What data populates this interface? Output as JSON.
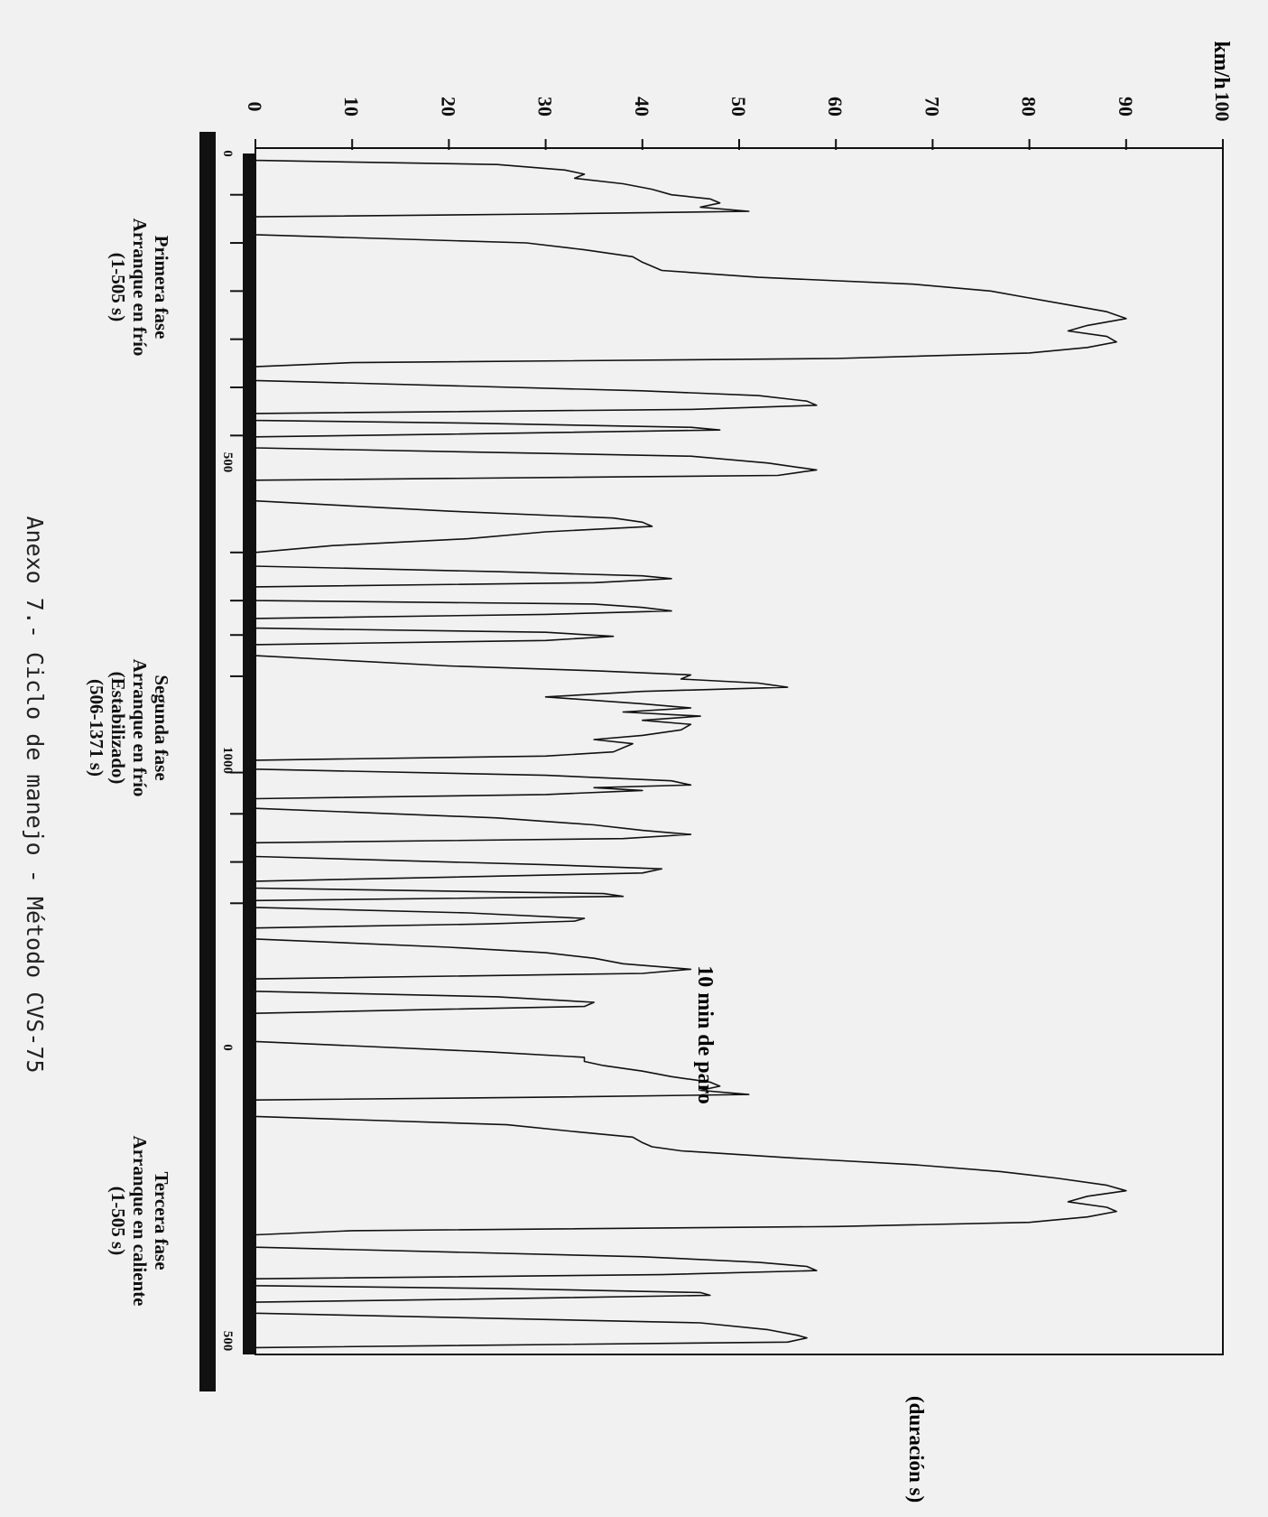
{
  "page": {
    "caption": "Anexo 7.- Ciclo de manejo - Método CVS-75",
    "colors": {
      "background": "#f1f1f1",
      "ink": "#111111"
    }
  },
  "chart_data": {
    "type": "line",
    "orientation": "rotated 90° clockwise",
    "ylabel": "km/h",
    "xlabel": "(duración s)",
    "ylim": [
      0,
      100
    ],
    "yticks": [
      0,
      10,
      20,
      30,
      40,
      50,
      60,
      70,
      80,
      90,
      100
    ],
    "xtick_labels": [
      "0",
      "500",
      "1000",
      "0",
      "500"
    ],
    "grid": false,
    "annotation": "10 min de paro",
    "phases": [
      {
        "lines": [
          "Primera fase",
          "Arranque en frío",
          "(1-505 s)"
        ]
      },
      {
        "lines": [
          "Segunda fase",
          "Arranque en frío",
          "(Estabilizado)",
          "(506-1371 s)"
        ]
      },
      {
        "lines": [
          "Tercera fase",
          "Arranque en caliente",
          "(1-505 s)"
        ]
      }
    ],
    "series": [
      {
        "points": [
          [
            0,
            0
          ],
          [
            10,
            0
          ],
          [
            16,
            25
          ],
          [
            24,
            32
          ],
          [
            30,
            34
          ],
          [
            36,
            33
          ],
          [
            44,
            38
          ],
          [
            52,
            41
          ],
          [
            60,
            43
          ],
          [
            66,
            47
          ],
          [
            72,
            48
          ],
          [
            78,
            46
          ],
          [
            84,
            51
          ],
          [
            88,
            30
          ],
          [
            92,
            0
          ],
          [
            118,
            0
          ],
          [
            130,
            28
          ],
          [
            140,
            34
          ],
          [
            150,
            39
          ],
          [
            158,
            40
          ],
          [
            164,
            41
          ],
          [
            170,
            42
          ],
          [
            180,
            52
          ],
          [
            190,
            68
          ],
          [
            200,
            76
          ],
          [
            210,
            80
          ],
          [
            220,
            84
          ],
          [
            230,
            88
          ],
          [
            240,
            90
          ],
          [
            250,
            86
          ],
          [
            258,
            84
          ],
          [
            266,
            88
          ],
          [
            274,
            89
          ],
          [
            282,
            86
          ],
          [
            290,
            80
          ],
          [
            298,
            60
          ],
          [
            304,
            10
          ],
          [
            310,
            0
          ],
          [
            330,
            0
          ],
          [
            345,
            40
          ],
          [
            352,
            52
          ],
          [
            360,
            57
          ],
          [
            366,
            58
          ],
          [
            372,
            45
          ],
          [
            378,
            0
          ],
          [
            388,
            0
          ],
          [
            392,
            22
          ],
          [
            398,
            45
          ],
          [
            402,
            48
          ],
          [
            408,
            20
          ],
          [
            412,
            0
          ],
          [
            428,
            0
          ],
          [
            440,
            45
          ],
          [
            450,
            53
          ],
          [
            456,
            56
          ],
          [
            460,
            58
          ],
          [
            464,
            56
          ],
          [
            468,
            54
          ],
          [
            475,
            0
          ],
          [
            505,
            0
          ],
          [
            520,
            20
          ],
          [
            530,
            37
          ],
          [
            536,
            40
          ],
          [
            542,
            41
          ],
          [
            550,
            30
          ],
          [
            560,
            22
          ],
          [
            570,
            8
          ],
          [
            580,
            0
          ],
          [
            600,
            0
          ],
          [
            608,
            25
          ],
          [
            614,
            40
          ],
          [
            618,
            43
          ],
          [
            624,
            35
          ],
          [
            630,
            0
          ],
          [
            650,
            0
          ],
          [
            655,
            35
          ],
          [
            660,
            40
          ],
          [
            665,
            43
          ],
          [
            670,
            30
          ],
          [
            676,
            0
          ],
          [
            690,
            0
          ],
          [
            696,
            30
          ],
          [
            702,
            37
          ],
          [
            708,
            30
          ],
          [
            714,
            0
          ],
          [
            730,
            0
          ],
          [
            745,
            20
          ],
          [
            752,
            35
          ],
          [
            758,
            45
          ],
          [
            764,
            44
          ],
          [
            770,
            52
          ],
          [
            776,
            55
          ],
          [
            782,
            40
          ],
          [
            790,
            30
          ],
          [
            800,
            40
          ],
          [
            806,
            45
          ],
          [
            812,
            38
          ],
          [
            818,
            46
          ],
          [
            824,
            40
          ],
          [
            830,
            45
          ],
          [
            838,
            44
          ],
          [
            846,
            40
          ],
          [
            852,
            35
          ],
          [
            858,
            39
          ],
          [
            864,
            38
          ],
          [
            870,
            37
          ],
          [
            876,
            30
          ],
          [
            882,
            0
          ],
          [
            895,
            0
          ],
          [
            904,
            30
          ],
          [
            912,
            43
          ],
          [
            918,
            45
          ],
          [
            922,
            35
          ],
          [
            926,
            40
          ],
          [
            932,
            30
          ],
          [
            938,
            0
          ],
          [
            952,
            0
          ],
          [
            966,
            25
          ],
          [
            976,
            35
          ],
          [
            984,
            40
          ],
          [
            990,
            45
          ],
          [
            996,
            38
          ],
          [
            1002,
            0
          ],
          [
            1022,
            0
          ],
          [
            1034,
            30
          ],
          [
            1040,
            42
          ],
          [
            1046,
            40
          ],
          [
            1052,
            20
          ],
          [
            1058,
            0
          ],
          [
            1068,
            0
          ],
          [
            1076,
            36
          ],
          [
            1080,
            38
          ],
          [
            1086,
            0
          ],
          [
            1096,
            0
          ],
          [
            1104,
            22
          ],
          [
            1112,
            34
          ],
          [
            1116,
            33
          ],
          [
            1120,
            24
          ],
          [
            1126,
            0
          ],
          [
            1142,
            0
          ],
          [
            1154,
            20
          ],
          [
            1162,
            30
          ],
          [
            1170,
            35
          ],
          [
            1178,
            38
          ],
          [
            1186,
            45
          ],
          [
            1192,
            40
          ],
          [
            1200,
            0
          ],
          [
            1218,
            0
          ],
          [
            1226,
            25
          ],
          [
            1234,
            35
          ],
          [
            1240,
            34
          ],
          [
            1244,
            20
          ],
          [
            1250,
            0
          ],
          [
            1291,
            0
          ],
          [
            1306,
            24
          ],
          [
            1314,
            34
          ],
          [
            1320,
            34
          ],
          [
            1326,
            36
          ],
          [
            1334,
            40
          ],
          [
            1342,
            43
          ],
          [
            1350,
            47
          ],
          [
            1356,
            48
          ],
          [
            1362,
            46
          ],
          [
            1368,
            51
          ],
          [
            1372,
            30
          ],
          [
            1376,
            0
          ],
          [
            1400,
            0
          ],
          [
            1412,
            26
          ],
          [
            1422,
            33
          ],
          [
            1430,
            39
          ],
          [
            1438,
            40
          ],
          [
            1444,
            41
          ],
          [
            1450,
            44
          ],
          [
            1460,
            55
          ],
          [
            1470,
            68
          ],
          [
            1480,
            77
          ],
          [
            1490,
            83
          ],
          [
            1500,
            88
          ],
          [
            1508,
            90
          ],
          [
            1516,
            86
          ],
          [
            1524,
            84
          ],
          [
            1532,
            88
          ],
          [
            1538,
            89
          ],
          [
            1546,
            86
          ],
          [
            1554,
            80
          ],
          [
            1560,
            60
          ],
          [
            1566,
            10
          ],
          [
            1572,
            0
          ],
          [
            1590,
            0
          ],
          [
            1604,
            40
          ],
          [
            1612,
            52
          ],
          [
            1618,
            57
          ],
          [
            1624,
            58
          ],
          [
            1630,
            42
          ],
          [
            1636,
            0
          ],
          [
            1646,
            0
          ],
          [
            1650,
            25
          ],
          [
            1656,
            46
          ],
          [
            1660,
            47
          ],
          [
            1666,
            20
          ],
          [
            1670,
            0
          ],
          [
            1686,
            0
          ],
          [
            1700,
            46
          ],
          [
            1710,
            53
          ],
          [
            1718,
            56
          ],
          [
            1722,
            57
          ],
          [
            1728,
            55
          ],
          [
            1736,
            0
          ],
          [
            1746,
            0
          ]
        ]
      }
    ]
  }
}
